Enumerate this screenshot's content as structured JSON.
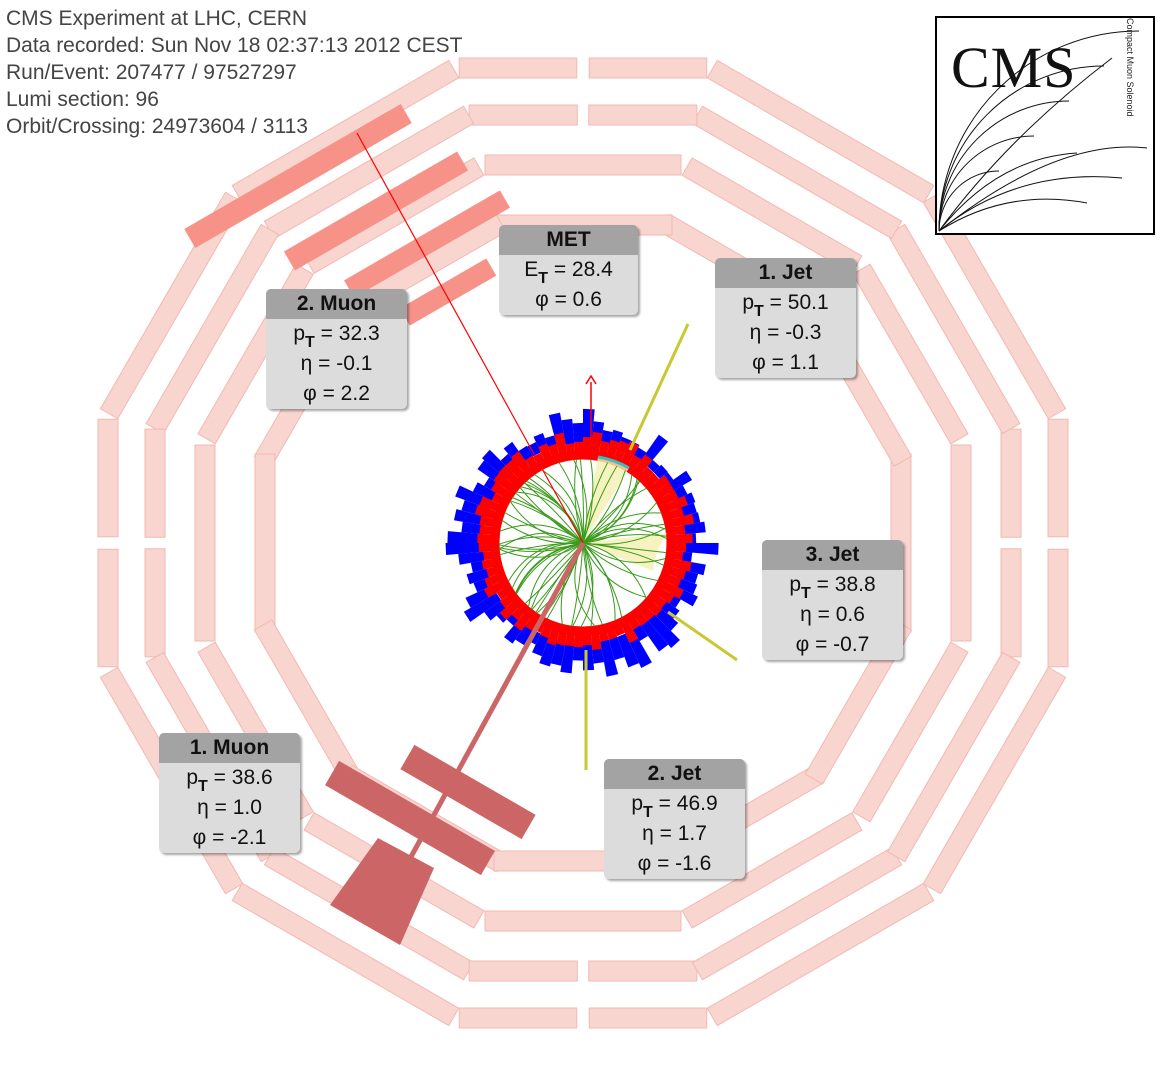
{
  "header": {
    "line1": "CMS Experiment at LHC, CERN",
    "line2": "Data recorded: Sun Nov 18 02:37:13 2012 CEST",
    "line3": "Run/Event: 207477 / 97527297",
    "line4": "Lumi section: 96",
    "line5": "Orbit/Crossing: 24973604 / 3113"
  },
  "logo": {
    "text": "CMS",
    "subtitle": "Compact Muon Solenoid"
  },
  "colors": {
    "muon_chamber": "#f9d5d0",
    "muon_chamber_hit": "#f79289",
    "muon_track_2": "#ff0000",
    "muon_track_1": "#cc6666",
    "ecal": "#ff0000",
    "hcal": "#0000ff",
    "jet": "#c8c832",
    "tracks": "#3a9a1a",
    "met": "#ff0000"
  },
  "boxes": {
    "met": {
      "title": "MET",
      "e_label": "E",
      "e_sub": "T",
      "e_value": " = 28.4",
      "phi": "φ = 0.6"
    },
    "jet1": {
      "title": "1. Jet",
      "p_label": "p",
      "p_sub": "T",
      "p_value": " = 50.1",
      "eta": "η = -0.3",
      "phi": "φ = 1.1"
    },
    "muon2": {
      "title": "2. Muon",
      "p_label": "p",
      "p_sub": "T",
      "p_value": " = 32.3",
      "eta": "η = -0.1",
      "phi": "φ = 2.2"
    },
    "jet3": {
      "title": "3. Jet",
      "p_label": "p",
      "p_sub": "T",
      "p_value": " = 38.8",
      "eta": "η = 0.6",
      "phi": "φ = -0.7"
    },
    "muon1": {
      "title": "1. Muon",
      "p_label": "p",
      "p_sub": "T",
      "p_value": " = 38.6",
      "eta": "η = 1.0",
      "phi": "φ = -2.1"
    },
    "jet2": {
      "title": "2. Jet",
      "p_label": "p",
      "p_sub": "T",
      "p_value": " = 46.9",
      "eta": "η = 1.7",
      "phi": "φ = -1.6"
    }
  }
}
